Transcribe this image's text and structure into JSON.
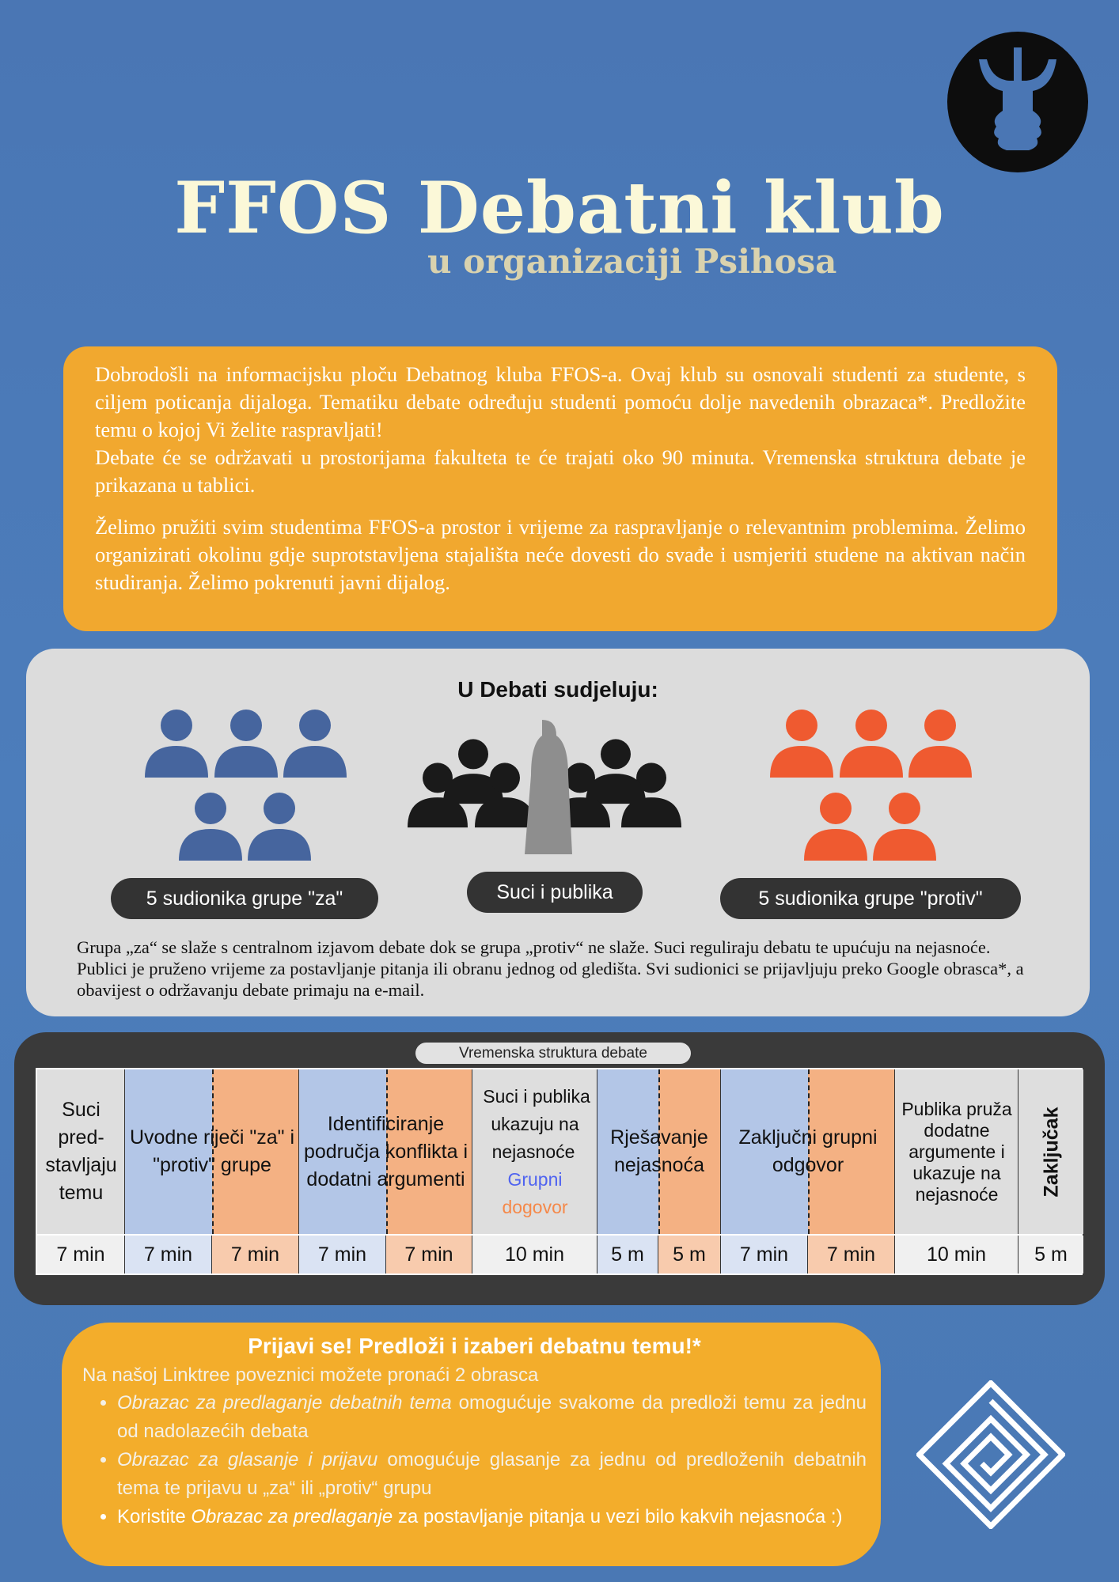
{
  "header": {
    "title": "FFOS Debatni klub",
    "subtitle": "u organizaciji Psihosa"
  },
  "intro": {
    "p1": "Dobrodošli na informacijsku ploču Debatnog kluba FFOS-a. Ovaj klub su osnovali studenti za studente, s ciljem poticanja dijaloga. Tematiku debate određuju studenti pomoću dolje navedenih obrazaca*. Predložite temu o kojoj Vi želite raspravljati!",
    "p1b": "Debate će se održavati u prostorijama fakulteta te će trajati oko 90 minuta. Vremenska struktura debate je prikazana u tablici.",
    "p2": "Želimo pružiti svim studentima FFOS-a prostor i vrijeme za raspravljanje o relevantnim problemima. Želimo organizirati okolinu gdje suprotstavljena stajališta neće dovesti do svađe i usmjeriti studene na aktivan način studiranja. Želimo  pokrenuti javni dijalog."
  },
  "participants": {
    "heading": "U Debati sudjeluju:",
    "za": "5 sudionika grupe \"za\"",
    "judges": "Suci i publika",
    "protiv": "5 sudionika grupe \"protiv\"",
    "description": "Grupa „za“ se slaže s centralnom izjavom debate dok se grupa „protiv“ ne slaže. Suci reguliraju debatu te upućuju na nejasnoće. Publici je pruženo vrijeme za postavljanje pitanja ili obranu jednog od gledišta. Svi sudionici se prijavljuju preko Google obrasca*, a obavijest o održavanju debate primaju na e-mail.",
    "colors": {
      "za": "#46659e",
      "protiv": "#ef5a30",
      "judges": "#1a1a1a"
    }
  },
  "schedule": {
    "caption": "Vremenska struktura debate",
    "labels": [
      "Suci pred-stavljaju temu",
      "Uvodne riječi \"za\" i \"protiv\" grupe",
      "Identificiranje područja konflikta i dodatni argumenti",
      "Suci i publika ukazuju na nejasnoće",
      "Rješavanje nejasnoća",
      "Zaključni grupni odgovor",
      "Publika pruža dodatne argumente i ukazuje na nejasnoće",
      "Zaključak"
    ],
    "grupni": "Grupni",
    "dogovor": "dogovor",
    "times": [
      "7 min",
      "7 min",
      "7 min",
      "7 min",
      "7 min",
      "10 min",
      "5 m",
      "5 m",
      "7 min",
      "7 min",
      "10 min",
      "5 m"
    ],
    "colors": {
      "neutral": "#dedede",
      "za": "#b3c6e7",
      "protiv": "#f4b183"
    }
  },
  "signup": {
    "title": "Prijavi se! Predloži i izaberi debatnu temu!*",
    "lead": "Na našoj Linktree poveznici možete pronaći 2 obrasca",
    "items": [
      {
        "em": "Obrazac za predlaganje debatnih tema",
        "rest": " omogućuje svakome da predloži temu za jednu od nadolazećih debata"
      },
      {
        "em": "Obrazac za glasanje i prijavu",
        "rest": " omogućuje glasanje za jednu od predloženih debatnih tema te prijavu u „za“ ili „protiv“ grupu"
      },
      {
        "pre": "Koristite ",
        "em": "Obrazac za predlaganje",
        "rest": " za postavljanje pitanja u vezi bilo kakvih nejasnoća :)"
      }
    ]
  }
}
